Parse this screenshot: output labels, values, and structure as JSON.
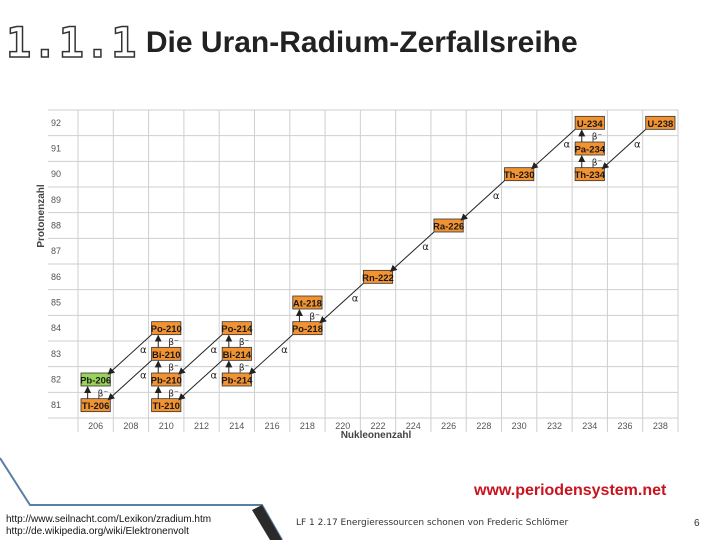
{
  "slide": {
    "number": "1.1.1",
    "title": "Die Uran-Radium-Zerfallsreihe",
    "footer_links": [
      "http://www.seilnacht.com/Lexikon/zradium.htm",
      "http://de.wikipedia.org/wiki/Elektronenvolt"
    ],
    "footer_text": "LF 1 2.17 Energieressourcen schonen von Frederic Schlömer",
    "page_number": "6",
    "brand": "www.periodensystem.net"
  },
  "chart_data": {
    "type": "decay-chain",
    "xlabel": "Nukleonenzahl",
    "ylabel": "Protonenzahl",
    "x_ticks": [
      206,
      208,
      210,
      212,
      214,
      216,
      218,
      220,
      222,
      224,
      226,
      228,
      230,
      232,
      234,
      236,
      238
    ],
    "y_ticks": [
      81,
      82,
      83,
      84,
      85,
      86,
      87,
      88,
      89,
      90,
      91,
      92
    ],
    "colors": {
      "radioactive": "#f29230",
      "stable": "#9bd35a",
      "grid": "#cfcfcf"
    },
    "nuclides": [
      {
        "label": "U-238",
        "A": 238,
        "Z": 92
      },
      {
        "label": "Th-234",
        "A": 234,
        "Z": 90
      },
      {
        "label": "Pa-234",
        "A": 234,
        "Z": 91
      },
      {
        "label": "U-234",
        "A": 234,
        "Z": 92
      },
      {
        "label": "Th-230",
        "A": 230,
        "Z": 90
      },
      {
        "label": "Ra-226",
        "A": 226,
        "Z": 88
      },
      {
        "label": "Rn-222",
        "A": 222,
        "Z": 86
      },
      {
        "label": "Po-218",
        "A": 218,
        "Z": 84
      },
      {
        "label": "At-218",
        "A": 218,
        "Z": 85
      },
      {
        "label": "Pb-214",
        "A": 214,
        "Z": 82
      },
      {
        "label": "Bi-214",
        "A": 214,
        "Z": 83
      },
      {
        "label": "Po-214",
        "A": 214,
        "Z": 84
      },
      {
        "label": "Pb-210",
        "A": 210,
        "Z": 82
      },
      {
        "label": "Bi-210",
        "A": 210,
        "Z": 83
      },
      {
        "label": "Po-210",
        "A": 210,
        "Z": 84
      },
      {
        "label": "Tl-210",
        "A": 210,
        "Z": 81
      },
      {
        "label": "Tl-206",
        "A": 206,
        "Z": 81
      },
      {
        "label": "Pb-206",
        "A": 206,
        "Z": 82,
        "stable": true
      }
    ],
    "decays": [
      {
        "type": "alpha",
        "label": "α",
        "from": [
          238,
          92
        ],
        "to": [
          234,
          90
        ]
      },
      {
        "type": "beta",
        "label": "β⁻",
        "from": [
          234,
          90
        ],
        "to": [
          234,
          91
        ]
      },
      {
        "type": "beta",
        "label": "β⁻",
        "from": [
          234,
          91
        ],
        "to": [
          234,
          92
        ]
      },
      {
        "type": "alpha",
        "label": "α",
        "from": [
          234,
          92
        ],
        "to": [
          230,
          90
        ]
      },
      {
        "type": "alpha",
        "label": "α",
        "from": [
          230,
          90
        ],
        "to": [
          226,
          88
        ]
      },
      {
        "type": "alpha",
        "label": "α",
        "from": [
          226,
          88
        ],
        "to": [
          222,
          86
        ]
      },
      {
        "type": "alpha",
        "label": "α",
        "from": [
          222,
          86
        ],
        "to": [
          218,
          84
        ]
      },
      {
        "type": "beta",
        "label": "β⁻",
        "from": [
          218,
          84
        ],
        "to": [
          218,
          85
        ]
      },
      {
        "type": "alpha",
        "label": "α",
        "from": [
          218,
          84
        ],
        "to": [
          214,
          82
        ]
      },
      {
        "type": "beta",
        "label": "β⁻",
        "from": [
          214,
          82
        ],
        "to": [
          214,
          83
        ]
      },
      {
        "type": "beta",
        "label": "β⁻",
        "from": [
          214,
          83
        ],
        "to": [
          214,
          84
        ]
      },
      {
        "type": "alpha",
        "label": "α",
        "from": [
          214,
          83
        ],
        "to": [
          210,
          81
        ]
      },
      {
        "type": "alpha",
        "label": "α",
        "from": [
          214,
          84
        ],
        "to": [
          210,
          82
        ]
      },
      {
        "type": "beta",
        "label": "β⁻",
        "from": [
          210,
          81
        ],
        "to": [
          210,
          82
        ]
      },
      {
        "type": "beta",
        "label": "β⁻",
        "from": [
          210,
          82
        ],
        "to": [
          210,
          83
        ]
      },
      {
        "type": "beta",
        "label": "β⁻",
        "from": [
          210,
          83
        ],
        "to": [
          210,
          84
        ]
      },
      {
        "type": "alpha",
        "label": "α",
        "from": [
          210,
          83
        ],
        "to": [
          206,
          81
        ]
      },
      {
        "type": "alpha",
        "label": "α",
        "from": [
          210,
          84
        ],
        "to": [
          206,
          82
        ]
      },
      {
        "type": "beta",
        "label": "β⁻",
        "from": [
          206,
          81
        ],
        "to": [
          206,
          82
        ]
      }
    ]
  }
}
